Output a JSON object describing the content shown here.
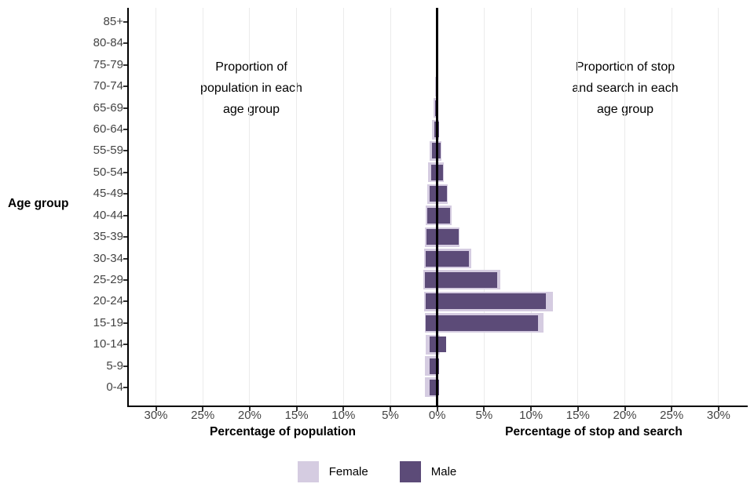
{
  "chart_data": {
    "type": "bar",
    "variant": "population-pyramid",
    "title": "",
    "categories_top_to_bottom": [
      "85+",
      "80-84",
      "75-79",
      "70-74",
      "65-69",
      "60-64",
      "55-59",
      "50-54",
      "45-49",
      "40-44",
      "35-39",
      "30-34",
      "25-29",
      "20-24",
      "15-19",
      "10-14",
      "5-9",
      "0-4"
    ],
    "ylabel": "Age group",
    "left_panel": {
      "xlabel": "Percentage of population",
      "annotation": "Proportion of\npopulation in each\nage group",
      "series": [
        {
          "name": "Female",
          "color": "#D5CCE1",
          "values": [
            0,
            0,
            0,
            0.22,
            0.42,
            0.57,
            0.8,
            0.97,
            1.05,
            1.25,
            1.3,
            1.4,
            1.45,
            1.4,
            1.3,
            1.2,
            1.3,
            1.3
          ]
        },
        {
          "name": "Male",
          "color": "#5C4B78",
          "values": [
            0,
            0,
            0,
            0.1,
            0.22,
            0.35,
            0.52,
            0.65,
            0.85,
            1.05,
            1.15,
            1.25,
            1.3,
            1.25,
            1.2,
            0.8,
            0.8,
            0.85
          ]
        }
      ]
    },
    "right_panel": {
      "xlabel": "Percentage of stop and search",
      "annotation": "Proportion of stop\nand search in each\nage group",
      "series": [
        {
          "name": "Female",
          "color": "#D5CCE1",
          "values": [
            0,
            0,
            0,
            0.1,
            0.12,
            0.2,
            0.42,
            0.68,
            1.08,
            1.55,
            2.4,
            3.6,
            6.7,
            12.3,
            11.3,
            0.3,
            0.1,
            0.1
          ]
        },
        {
          "name": "Male",
          "color": "#5C4B78",
          "values": [
            0,
            0,
            0,
            0.08,
            0.12,
            0.22,
            0.38,
            0.6,
            1.0,
            1.35,
            2.25,
            3.4,
            6.4,
            11.6,
            10.75,
            0.95,
            0.17,
            0.2
          ]
        }
      ]
    },
    "x_axis": {
      "tick_labels": [
        "30%",
        "25%",
        "20%",
        "15%",
        "10%",
        "5%",
        "0%",
        "5%",
        "10%",
        "15%",
        "20%",
        "25%",
        "30%"
      ],
      "tick_percent_offsets": [
        -30,
        -25,
        -20,
        -15,
        -10,
        -5,
        0,
        5,
        10,
        15,
        20,
        25,
        30
      ],
      "max_pct": 30
    },
    "grid": "vertical-major-only",
    "legend": {
      "position": "bottom-center",
      "entries": [
        {
          "label": "Female",
          "color": "#D5CCE1"
        },
        {
          "label": "Male",
          "color": "#5C4B78"
        }
      ]
    },
    "colors": {
      "female": "#D5CCE1",
      "male": "#5C4B78",
      "gridline": "#EBEBEB",
      "axis": "#000000",
      "tick_text": "#444444"
    }
  }
}
